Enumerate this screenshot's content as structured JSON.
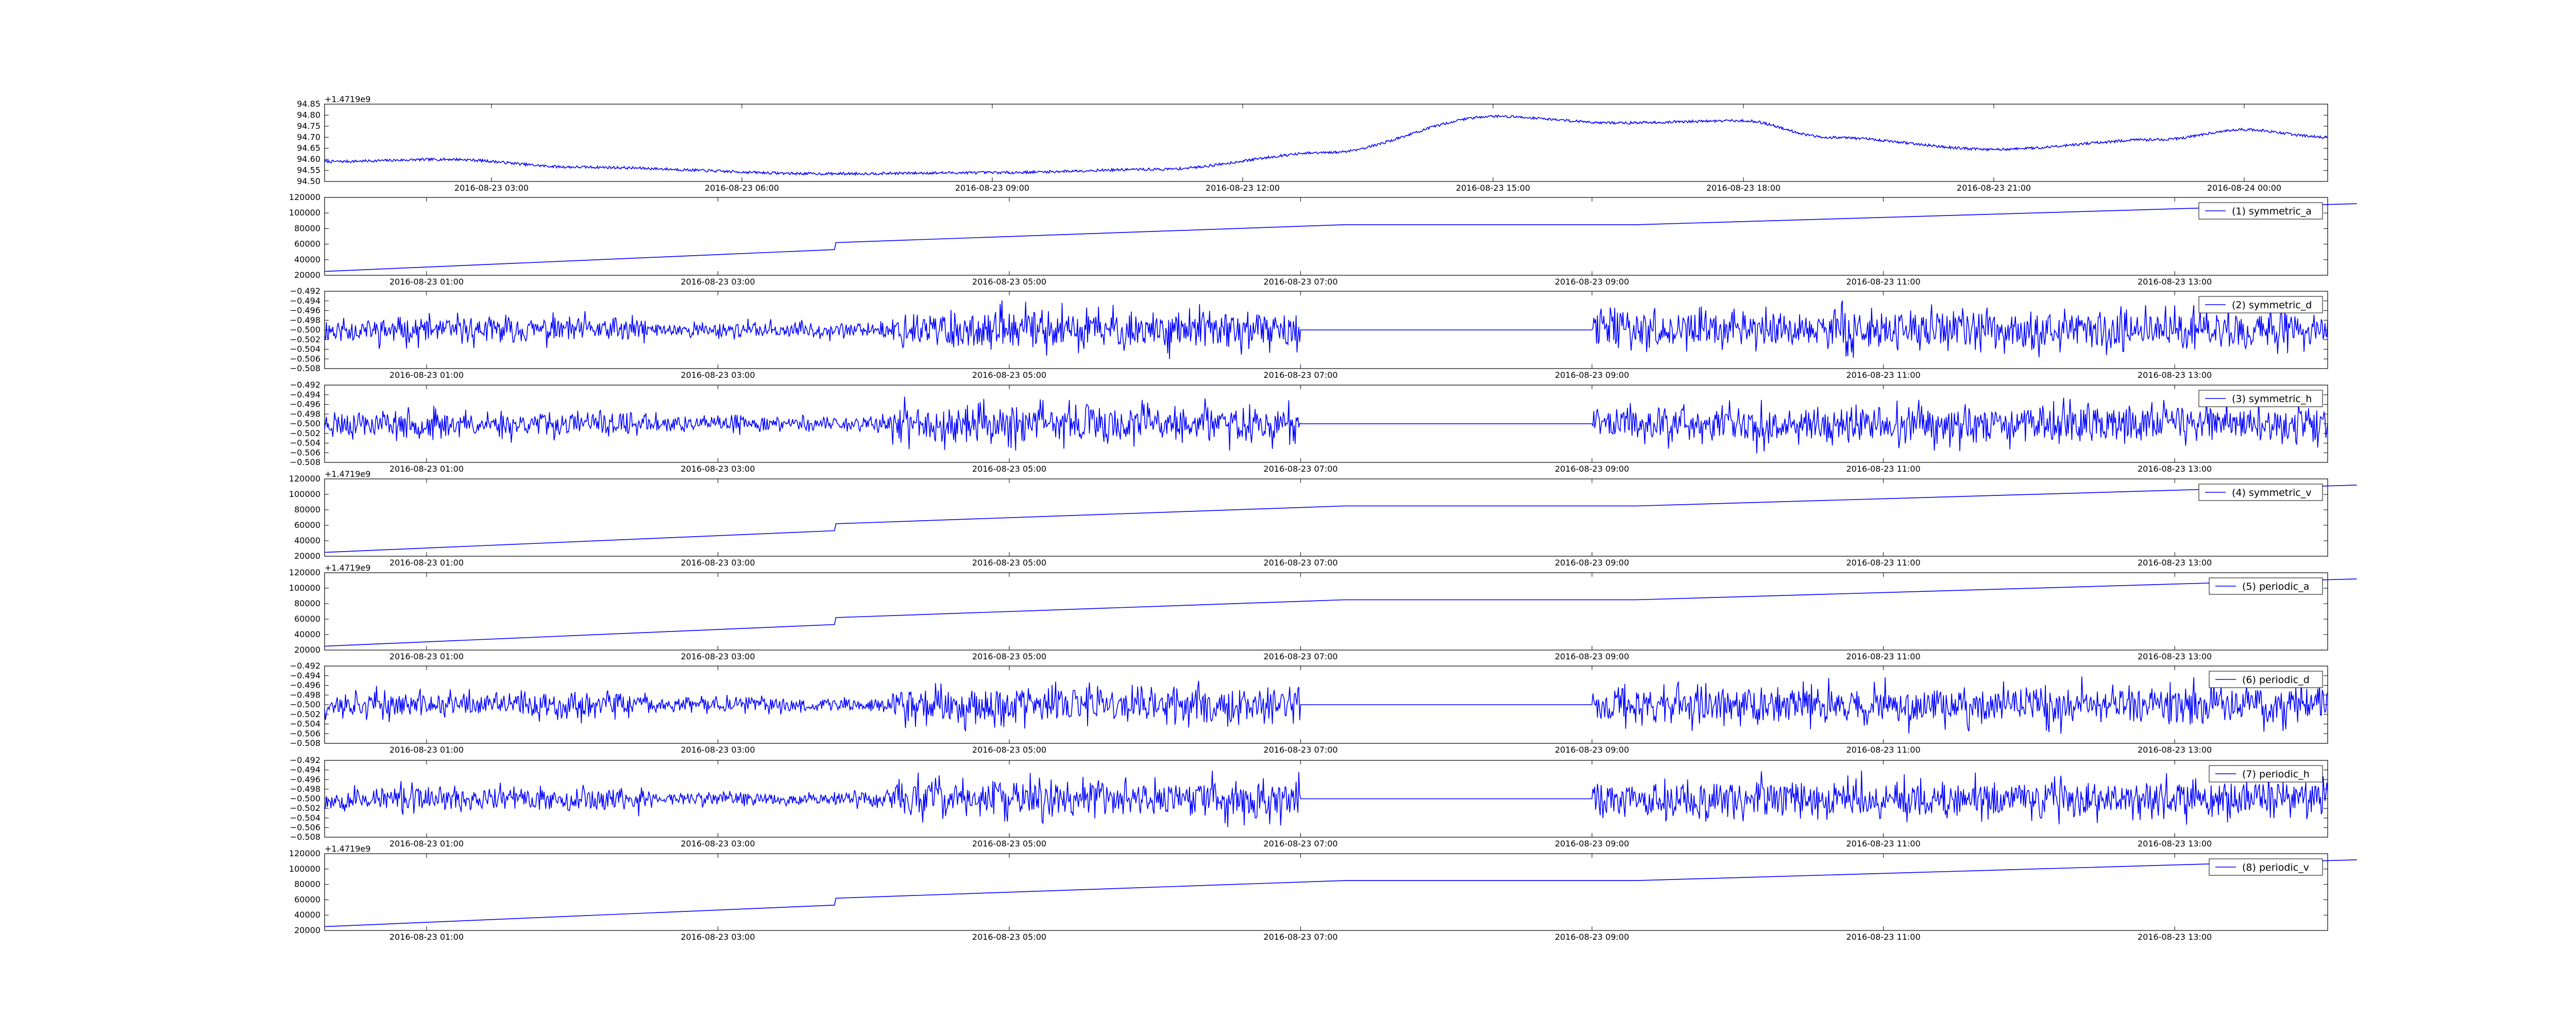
{
  "chart_data": [
    {
      "type": "line",
      "name": "",
      "legend": "",
      "offset_text": "+1.4719e9",
      "yticks": [
        "94.85",
        "94.80",
        "94.75",
        "94.70",
        "94.65",
        "94.60",
        "94.55",
        "94.50"
      ],
      "ylim": [
        94.5,
        94.85
      ],
      "xtick_labels": [
        "2016-08-23 03:00",
        "2016-08-23 06:00",
        "2016-08-23 09:00",
        "2016-08-23 12:00",
        "2016-08-23 15:00",
        "2016-08-23 18:00",
        "2016-08-23 21:00",
        "2016-08-24 00:00"
      ],
      "series_color": "#0000ff",
      "x": [
        "2016-08-23 01:00",
        "2016-08-23 02:30",
        "2016-08-23 04:00",
        "2016-08-23 07:00",
        "2016-08-23 09:00",
        "2016-08-23 11:00",
        "2016-08-23 13:00",
        "2016-08-23 15:00",
        "2016-08-23 16:30",
        "2016-08-23 18:00",
        "2016-08-23 19:00",
        "2016-08-23 21:00",
        "2016-08-23 23:00",
        "2016-08-24 00:00",
        "2016-08-24 01:00"
      ],
      "values": [
        94.59,
        94.6,
        94.565,
        94.535,
        94.54,
        94.555,
        94.63,
        94.795,
        94.765,
        94.775,
        94.7,
        94.645,
        94.69,
        94.735,
        94.7
      ]
    },
    {
      "type": "line",
      "name": "(1) symmetric_a",
      "legend": "(1) symmetric_a",
      "offset_text": "",
      "yticks": [
        "120000",
        "100000",
        "80000",
        "60000",
        "40000",
        "20000"
      ],
      "ylim": [
        20000,
        120000
      ],
      "xtick_labels": [
        "2016-08-23 01:00",
        "2016-08-23 03:00",
        "2016-08-23 05:00",
        "2016-08-23 07:00",
        "2016-08-23 09:00",
        "2016-08-23 11:00",
        "2016-08-23 13:00"
      ],
      "series_color": "#0000ff",
      "x": [
        0,
        3.5,
        3.51,
        7,
        9,
        13,
        13.95
      ],
      "values": [
        25000,
        53000,
        62000,
        85000,
        85000,
        107000,
        112000
      ]
    },
    {
      "type": "line",
      "name": "(2) symmetric_d",
      "legend": "(2) symmetric_d",
      "offset_text": "",
      "yticks": [
        "−0.492",
        "−0.494",
        "−0.496",
        "−0.498",
        "−0.500",
        "−0.502",
        "−0.504",
        "−0.506",
        "−0.508"
      ],
      "ylim": [
        -0.508,
        -0.492
      ],
      "xtick_labels": [
        "2016-08-23 01:00",
        "2016-08-23 03:00",
        "2016-08-23 05:00",
        "2016-08-23 07:00",
        "2016-08-23 09:00",
        "2016-08-23 11:00",
        "2016-08-23 13:00"
      ],
      "series_color": "#0000ff",
      "noise_center": -0.5,
      "flat_segment": [
        7.0,
        9.0
      ],
      "seed": 11
    },
    {
      "type": "line",
      "name": "(3) symmetric_h",
      "legend": "(3) symmetric_h",
      "offset_text": "",
      "yticks": [
        "−0.492",
        "−0.494",
        "−0.496",
        "−0.498",
        "−0.500",
        "−0.502",
        "−0.504",
        "−0.506",
        "−0.508"
      ],
      "ylim": [
        -0.508,
        -0.492
      ],
      "xtick_labels": [
        "2016-08-23 01:00",
        "2016-08-23 03:00",
        "2016-08-23 05:00",
        "2016-08-23 07:00",
        "2016-08-23 09:00",
        "2016-08-23 11:00",
        "2016-08-23 13:00"
      ],
      "series_color": "#0000ff",
      "noise_center": -0.5,
      "flat_segment": [
        7.0,
        9.0
      ],
      "seed": 23
    },
    {
      "type": "line",
      "name": "(4) symmetric_v",
      "legend": "(4) symmetric_v",
      "offset_text": "+1.4719e9",
      "yticks": [
        "120000",
        "100000",
        "80000",
        "60000",
        "40000",
        "20000"
      ],
      "ylim": [
        20000,
        120000
      ],
      "xtick_labels": [
        "2016-08-23 01:00",
        "2016-08-23 03:00",
        "2016-08-23 05:00",
        "2016-08-23 07:00",
        "2016-08-23 09:00",
        "2016-08-23 11:00",
        "2016-08-23 13:00"
      ],
      "series_color": "#0000ff",
      "x": [
        0,
        3.5,
        3.51,
        7,
        9,
        13,
        13.95
      ],
      "values": [
        25000,
        53000,
        62000,
        85000,
        85000,
        107000,
        112000
      ]
    },
    {
      "type": "line",
      "name": "(5) periodic_a",
      "legend": "(5) periodic_a",
      "offset_text": "+1.4719e9",
      "yticks": [
        "120000",
        "100000",
        "80000",
        "60000",
        "40000",
        "20000"
      ],
      "ylim": [
        20000,
        120000
      ],
      "xtick_labels": [
        "2016-08-23 01:00",
        "2016-08-23 03:00",
        "2016-08-23 05:00",
        "2016-08-23 07:00",
        "2016-08-23 09:00",
        "2016-08-23 11:00",
        "2016-08-23 13:00"
      ],
      "series_color": "#0000ff",
      "x": [
        0,
        3.5,
        3.51,
        7,
        9,
        13,
        13.95
      ],
      "values": [
        25000,
        53000,
        62000,
        85000,
        85000,
        107000,
        112000
      ]
    },
    {
      "type": "line",
      "name": "(6) periodic_d",
      "legend": "(6) periodic_d",
      "offset_text": "",
      "yticks": [
        "−0.492",
        "−0.494",
        "−0.496",
        "−0.498",
        "−0.500",
        "−0.502",
        "−0.504",
        "−0.506",
        "−0.508"
      ],
      "ylim": [
        -0.508,
        -0.492
      ],
      "xtick_labels": [
        "2016-08-23 01:00",
        "2016-08-23 03:00",
        "2016-08-23 05:00",
        "2016-08-23 07:00",
        "2016-08-23 09:00",
        "2016-08-23 11:00",
        "2016-08-23 13:00"
      ],
      "series_color": "#0000ff",
      "noise_center": -0.5,
      "flat_segment": [
        7.0,
        9.0
      ],
      "seed": 37
    },
    {
      "type": "line",
      "name": "(7) periodic_h",
      "legend": "(7) periodic_h",
      "offset_text": "",
      "yticks": [
        "−0.492",
        "−0.494",
        "−0.496",
        "−0.498",
        "−0.500",
        "−0.502",
        "−0.504",
        "−0.506",
        "−0.508"
      ],
      "ylim": [
        -0.508,
        -0.492
      ],
      "xtick_labels": [
        "2016-08-23 01:00",
        "2016-08-23 03:00",
        "2016-08-23 05:00",
        "2016-08-23 07:00",
        "2016-08-23 09:00",
        "2016-08-23 11:00",
        "2016-08-23 13:00"
      ],
      "series_color": "#0000ff",
      "noise_center": -0.5,
      "flat_segment": [
        7.0,
        9.0
      ],
      "seed": 53
    },
    {
      "type": "line",
      "name": "(8) periodic_v",
      "legend": "(8) periodic_v",
      "offset_text": "+1.4719e9",
      "yticks": [
        "120000",
        "100000",
        "80000",
        "60000",
        "40000",
        "20000"
      ],
      "ylim": [
        20000,
        120000
      ],
      "xtick_labels": [
        "2016-08-23 01:00",
        "2016-08-23 03:00",
        "2016-08-23 05:00",
        "2016-08-23 07:00",
        "2016-08-23 09:00",
        "2016-08-23 11:00",
        "2016-08-23 13:00"
      ],
      "series_color": "#0000ff",
      "x": [
        0,
        3.5,
        3.51,
        7,
        9,
        13,
        13.95
      ],
      "values": [
        25000,
        53000,
        62000,
        85000,
        85000,
        107000,
        112000
      ]
    }
  ]
}
